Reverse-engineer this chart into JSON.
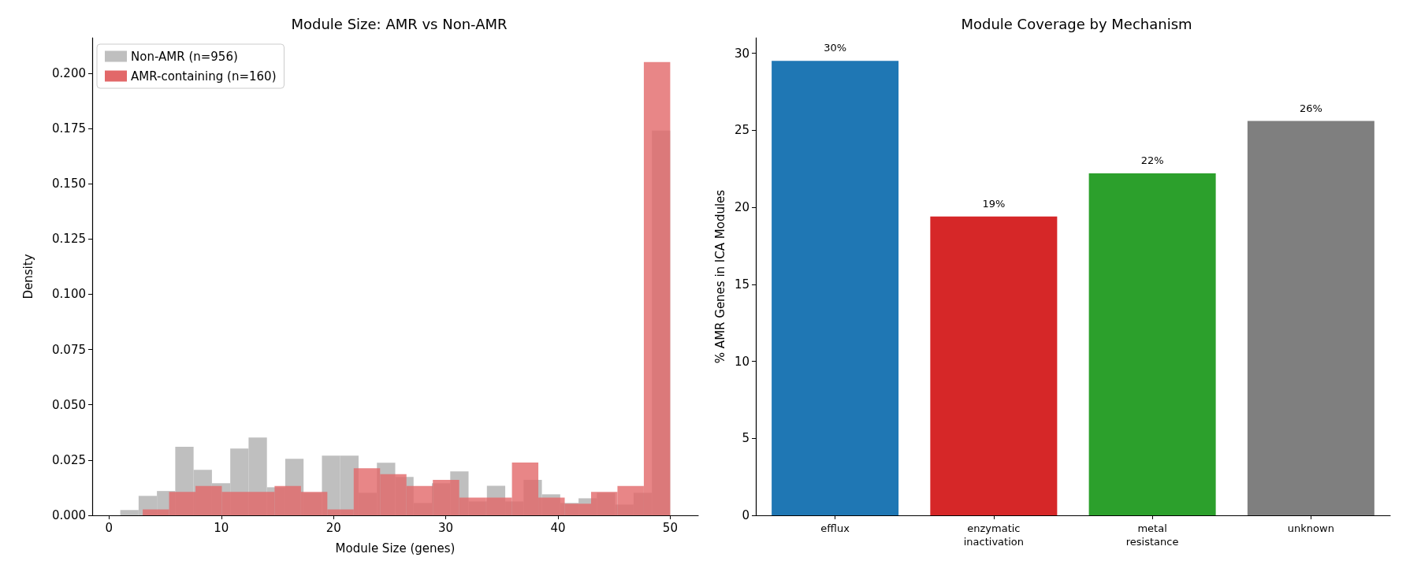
{
  "chart_data": [
    {
      "type": "histogram",
      "title": "Module Size: AMR vs Non-AMR",
      "xlabel": "Module Size (genes)",
      "ylabel": "Density",
      "legend": "top left",
      "grid": false,
      "xlim": [
        -1.5,
        52.5
      ],
      "xticks": [
        0,
        10,
        20,
        30,
        40,
        50
      ],
      "ylim": [
        0,
        0.216
      ],
      "yticks": [
        {
          "value": 0,
          "label": "0.000"
        },
        {
          "value": 0.025,
          "label": "0.025"
        },
        {
          "value": 0.05,
          "label": "0.050"
        },
        {
          "value": 0.075,
          "label": "0.075"
        },
        {
          "value": 0.1,
          "label": "0.100"
        },
        {
          "value": 0.125,
          "label": "0.125"
        },
        {
          "value": 0.15,
          "label": "0.150"
        },
        {
          "value": 0.175,
          "label": "0.175"
        },
        {
          "value": 0.2,
          "label": "0.200"
        }
      ],
      "bins": [
        1,
        2.633,
        4.267,
        5.9,
        7.533,
        9.167,
        10.8,
        12.433,
        14.067,
        15.7,
        17.333,
        18.967,
        20.6,
        22.233,
        23.867,
        25.5,
        27.133,
        28.767,
        30.4,
        32.033,
        33.667,
        35.3,
        36.933,
        38.567,
        40.2,
        41.833,
        43.467,
        45.1,
        46.733,
        48.367,
        50
      ],
      "series": [
        {
          "name": "Non-AMR (n=956)",
          "color": "#bfbfbf",
          "values": [
            0.0024,
            0.0088,
            0.011,
            0.031,
            0.0206,
            0.0145,
            0.0302,
            0.0352,
            0.0127,
            0.0256,
            0.0102,
            0.027,
            0.027,
            0.0102,
            0.0238,
            0.0174,
            0.0056,
            0.0145,
            0.0199,
            0.0063,
            0.0134,
            0.0063,
            0.016,
            0.0095,
            0.0056,
            0.0077,
            0.0102,
            0.0049,
            0.0102,
            0.174
          ]
        },
        {
          "name": "AMR-containing (n=160)",
          "color": "#e26869",
          "bins": [
            3,
            5.35,
            7.7,
            10.05,
            12.4,
            14.75,
            17.1,
            19.45,
            21.8,
            24.15,
            26.5,
            28.85,
            31.2,
            33.55,
            35.9,
            38.25,
            40.6,
            42.95,
            45.3,
            47.65,
            50
          ],
          "values": [
            0.0027,
            0.0106,
            0.0133,
            0.0106,
            0.0106,
            0.0133,
            0.0106,
            0.0027,
            0.0213,
            0.0186,
            0.0133,
            0.016,
            0.008,
            0.008,
            0.0239,
            0.008,
            0.0053,
            0.0106,
            0.0133,
            0.205
          ]
        }
      ]
    },
    {
      "type": "bar",
      "title": "Module Coverage by Mechanism",
      "ylabel": "% AMR Genes in ICA Modules",
      "grid": false,
      "legend": false,
      "categories": [
        "efflux",
        "enzymatic\ninactivation",
        "metal\nresistance",
        "unknown"
      ],
      "values": [
        29.5,
        19.4,
        22.2,
        25.6
      ],
      "value_labels": [
        "30%",
        "19%",
        "22%",
        "26%"
      ],
      "colors": [
        "#1f77b4",
        "#d62728",
        "#2ca02c",
        "#7f7f7f"
      ],
      "ylim": [
        0,
        31
      ],
      "yticks": [
        0,
        5,
        10,
        15,
        20,
        25,
        30
      ]
    }
  ]
}
